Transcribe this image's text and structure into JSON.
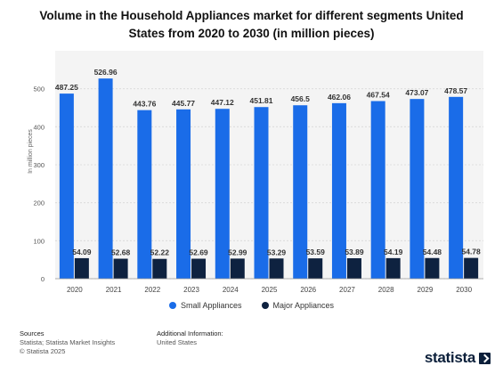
{
  "title": "Volume in the Household Appliances market for different segments United States from 2020 to 2030 (in million pieces)",
  "chart_data": {
    "type": "bar",
    "categories": [
      "2020",
      "2021",
      "2022",
      "2023",
      "2024",
      "2025",
      "2026",
      "2027",
      "2028",
      "2029",
      "2030"
    ],
    "series": [
      {
        "name": "Small Appliances",
        "color": "#1a6ce8",
        "values": [
          487.25,
          526.96,
          443.76,
          445.77,
          447.12,
          451.81,
          456.5,
          462.06,
          467.54,
          473.07,
          478.57
        ],
        "labels": [
          "487.25",
          "526.96",
          "443.76",
          "445.77",
          "447.12",
          "451.81",
          "456.5",
          "462.06",
          "467.54",
          "473.07",
          "478.57"
        ]
      },
      {
        "name": "Major Appliances",
        "color": "#0e2240",
        "values": [
          54.09,
          52.68,
          52.22,
          52.69,
          52.99,
          53.29,
          53.59,
          53.89,
          54.19,
          54.48,
          54.78
        ],
        "labels": [
          "54.09",
          "52.68",
          "52.22",
          "52.69",
          "52.99",
          "53.29",
          "53.59",
          "53.89",
          "54.19",
          "54.48",
          "54.78"
        ]
      }
    ],
    "ylabel": "In million pieces",
    "ylim": [
      0,
      600
    ],
    "yticks": [
      "0",
      "100",
      "200",
      "300",
      "400",
      "500"
    ],
    "grid": true,
    "legend_position": "bottom-center"
  },
  "footer": {
    "sources_head": "Sources",
    "sources_line1": "Statista; Statista Market Insights",
    "sources_line2": "© Statista 2025",
    "info_head": "Additional Information:",
    "info_line1": "United States"
  },
  "logo_text": "statista"
}
